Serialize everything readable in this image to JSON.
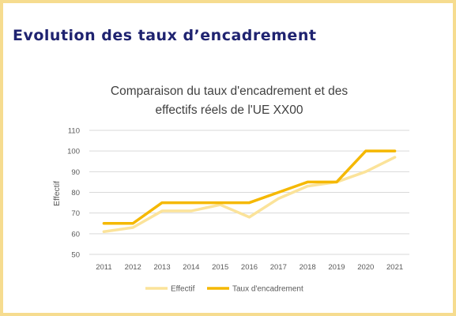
{
  "slide": {
    "title": "Evolution des taux d’encadrement"
  },
  "colors": {
    "frame": "#f6dc8f",
    "title": "#1f2370",
    "effectif": "#fbe39a",
    "taux": "#f5b800",
    "grid": "#d9d9d9"
  },
  "chart_data": {
    "type": "line",
    "title_lines": [
      "Comparaison du taux d'encadrement et des",
      "effectifs réels de l'UE XX00"
    ],
    "xlabel": "",
    "ylabel": "Effectif",
    "categories": [
      "2011",
      "2012",
      "2013",
      "2014",
      "2015",
      "2016",
      "2017",
      "2018",
      "2019",
      "2020",
      "2021"
    ],
    "ylim": [
      50,
      110
    ],
    "yticks": [
      50,
      60,
      70,
      80,
      90,
      100,
      110
    ],
    "grid": true,
    "legend_position": "bottom",
    "series": [
      {
        "name": "Effectif",
        "color": "#fbe39a",
        "values": [
          61,
          63,
          71,
          71,
          74,
          68,
          77,
          83,
          85,
          90,
          97
        ]
      },
      {
        "name": "Taux d'encadrement",
        "color": "#f5b800",
        "values": [
          65,
          65,
          75,
          75,
          75,
          75,
          80,
          85,
          85,
          100,
          100
        ]
      }
    ]
  }
}
